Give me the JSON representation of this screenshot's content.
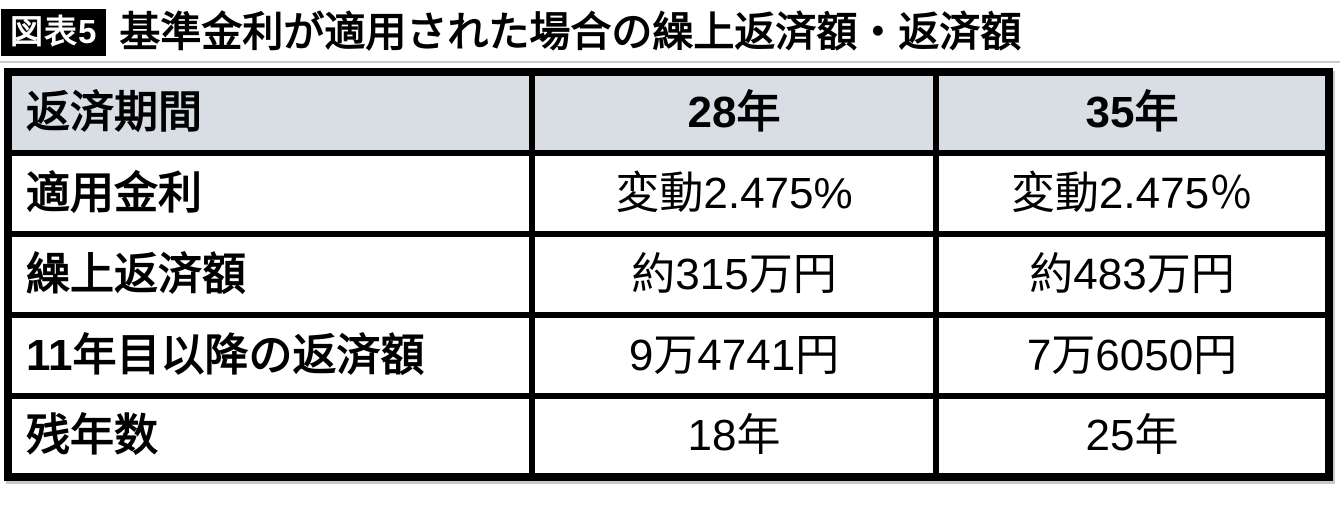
{
  "figure": {
    "tag_label": "図表5",
    "title": "基準金利が適用された場合の繰上返済額・返済額"
  },
  "chart_data": {
    "type": "table",
    "title": "基準金利が適用された場合の繰上返済額・返済額",
    "columns": [
      "返済期間",
      "28年",
      "35年"
    ],
    "rows": [
      [
        "適用金利",
        "変動2.475%",
        "変動2.475％"
      ],
      [
        "繰上返済額",
        "約315万円",
        "約483万円"
      ],
      [
        "11年目以降の返済額",
        "9万4741円",
        "7万6050円"
      ],
      [
        "残年数",
        "18年",
        "25年"
      ]
    ],
    "layout": {
      "header_row_shaded": true,
      "header_bg": "#d9dee5",
      "border_color": "#000000",
      "label_column_align": "left",
      "value_columns_align": "center"
    }
  }
}
